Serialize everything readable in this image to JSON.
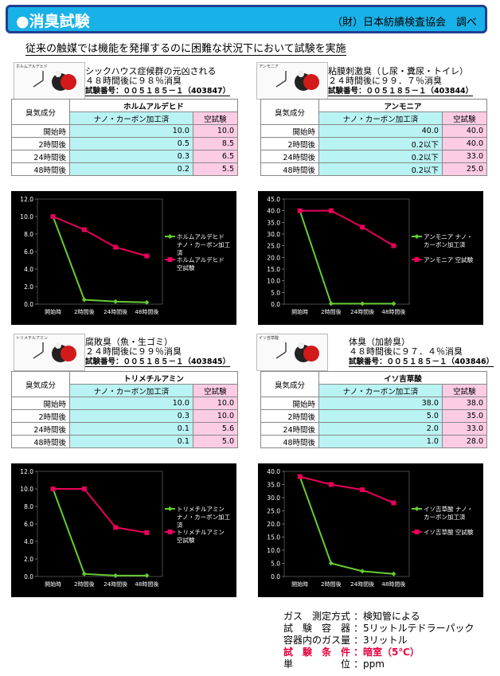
{
  "header": {
    "title": "●消臭試験",
    "source": "（財）日本紡績検査協会　調べ"
  },
  "subtitle": "従来の触媒では機能を発揮するのに困難な状況下において試験を実施",
  "table_labels": {
    "component": "臭気成分",
    "nano": "ナノ・カーボン加工済",
    "blank": "空試験",
    "rows": [
      "開始時",
      "2時間後",
      "24時間後",
      "48時間後"
    ]
  },
  "panels": [
    {
      "mol_caption": "ホルムアルデヒド",
      "line1": "シックハウス症候群の元凶される",
      "line2": "４８時間後に９８％消臭",
      "test_no": "試験番号：００５１８５－１（403847）",
      "name": "ホルムアルデヒド",
      "nano": [
        "10.0",
        "0.5",
        "0.3",
        "0.2"
      ],
      "blank": [
        "10.0",
        "8.5",
        "6.5",
        "5.5"
      ]
    },
    {
      "mol_caption": "アンモニア",
      "line1": "粘膜刺激臭（し尿・糞尿・トイレ）",
      "line2": "２４時間後に９９．７％消臭",
      "test_no": "試験番号：００５１８５－１（403844）",
      "name": "アンモニア",
      "nano": [
        "40.0",
        "0.2以下",
        "0.2以下",
        "0.2以下"
      ],
      "blank": [
        "40.0",
        "40.0",
        "33.0",
        "25.0"
      ]
    },
    {
      "mol_caption": "トリメチルアミン",
      "line1": "腐敗臭（魚・生ゴミ）",
      "line2": "２４時間後に９９％消臭",
      "test_no": "試験番号：００５１８５－１（403845）",
      "name": "トリメチルアミン",
      "nano": [
        "10.0",
        "0.3",
        "0.1",
        "0.1"
      ],
      "blank": [
        "10.0",
        "10.0",
        "5.6",
        "5.0"
      ]
    },
    {
      "mol_caption": "イソ吉草酸",
      "line1": "体臭（加齢臭）",
      "line2": "４８時間後に９７．４％消臭",
      "test_no": "試験番号：００５１８５－１（403846）",
      "name": "イソ吉草酸",
      "nano": [
        "38.0",
        "5.0",
        "2.0",
        "1.0"
      ],
      "blank": [
        "38.0",
        "35.0",
        "33.0",
        "28.0"
      ]
    }
  ],
  "chart_data": [
    {
      "type": "line",
      "categories": [
        "開始時",
        "2時間後",
        "24時間後",
        "48時間後"
      ],
      "ylim": [
        0,
        12
      ],
      "yticks": [
        "0.0",
        "2.0",
        "4.0",
        "6.0",
        "8.0",
        "10.0",
        "12.0"
      ],
      "series": [
        {
          "name": "ホルムアルデヒド ナノ・カーボン加工済",
          "color": "#66cc33",
          "values": [
            10.0,
            0.5,
            0.3,
            0.2
          ]
        },
        {
          "name": "ホルムアルデヒド 空試験",
          "color": "#e8005a",
          "values": [
            10.0,
            8.5,
            6.5,
            5.5
          ]
        }
      ]
    },
    {
      "type": "line",
      "categories": [
        "開始時",
        "2時間後",
        "24時間後",
        "48時間後"
      ],
      "ylim": [
        0,
        45
      ],
      "yticks": [
        "0.0",
        "5.0",
        "10.0",
        "15.0",
        "20.0",
        "25.0",
        "30.0",
        "35.0",
        "40.0",
        "45.0"
      ],
      "series": [
        {
          "name": "アンモニア ナノ・カーボン加工済",
          "color": "#66cc33",
          "values": [
            40.0,
            0.2,
            0.2,
            0.2
          ]
        },
        {
          "name": "アンモニア 空試験",
          "color": "#e8005a",
          "values": [
            40.0,
            40.0,
            33.0,
            25.0
          ]
        }
      ]
    },
    {
      "type": "line",
      "categories": [
        "開始時",
        "2時間後",
        "24時間後",
        "48時間後"
      ],
      "ylim": [
        0,
        12
      ],
      "yticks": [
        "0.0",
        "2.0",
        "4.0",
        "6.0",
        "8.0",
        "10.0",
        "12.0"
      ],
      "series": [
        {
          "name": "トリメチルアミン ナノ・カーボン加工済",
          "color": "#66cc33",
          "values": [
            10.0,
            0.3,
            0.1,
            0.1
          ]
        },
        {
          "name": "トリメチルアミン 空試験",
          "color": "#e8005a",
          "values": [
            10.0,
            10.0,
            5.6,
            5.0
          ]
        }
      ]
    },
    {
      "type": "line",
      "categories": [
        "開始時",
        "2時間後",
        "24時間後",
        "48時間後"
      ],
      "ylim": [
        0,
        40
      ],
      "yticks": [
        "0.0",
        "5.0",
        "10.0",
        "15.0",
        "20.0",
        "25.0",
        "30.0",
        "35.0",
        "40.0"
      ],
      "series": [
        {
          "name": "イソ吉草酸 ナノ・カーボン加工済",
          "color": "#66cc33",
          "values": [
            38.0,
            5.0,
            2.0,
            1.0
          ]
        },
        {
          "name": "イソ吉草酸 空試験",
          "color": "#e8005a",
          "values": [
            38.0,
            35.0,
            33.0,
            28.0
          ]
        }
      ]
    }
  ],
  "notes": [
    {
      "k": "ガス　測定方式",
      "v": "：検知管による",
      "red": false
    },
    {
      "k": "試　験　容　器",
      "v": "：5リットルテドラーパック",
      "red": false
    },
    {
      "k": "容器内のガス量",
      "v": "：3リットル",
      "red": false
    },
    {
      "k": "試　験　条　件",
      "v": "：暗室（5℃）",
      "red": true
    },
    {
      "k": "単　　　　　位",
      "v": "：ppm",
      "red": false
    }
  ]
}
